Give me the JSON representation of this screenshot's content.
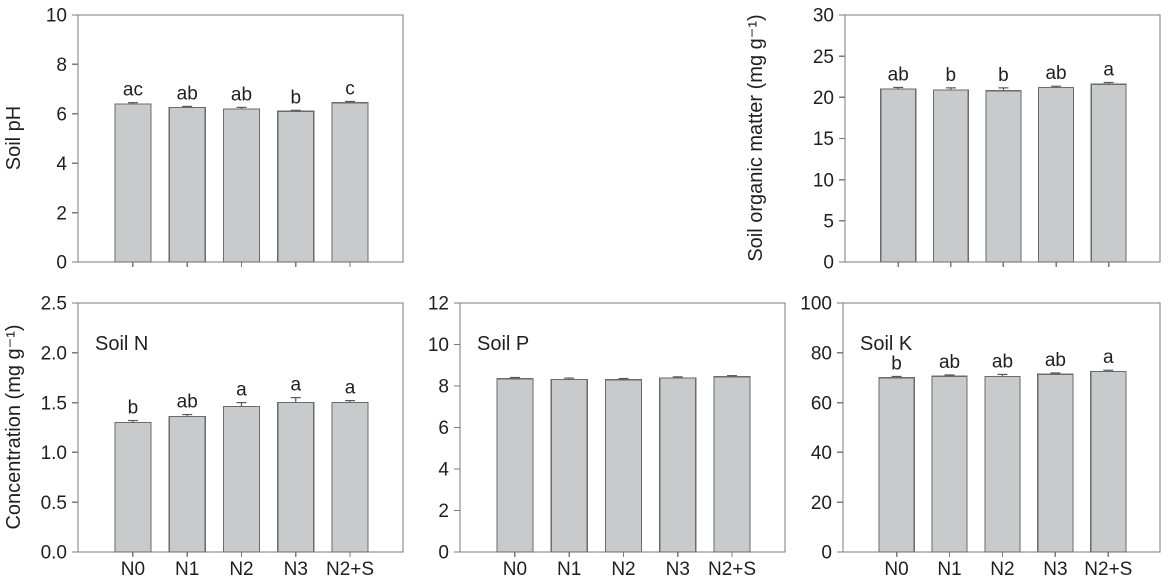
{
  "figure": {
    "title": "Soil properties bar chart panel",
    "background_color": "#ffffff",
    "text_color": "#1f1f1f",
    "categories": [
      "N0",
      "N1",
      "N2",
      "N3",
      "N2+S"
    ]
  },
  "style": {
    "bar_fill": "#c9cacc",
    "bar_stroke": "#6a6b6d",
    "frame_color": "#7a7b7e",
    "error_color": "#58595b",
    "text_color": "#1f1f1f"
  },
  "chart_data": [
    {
      "id": "soil-ph",
      "type": "bar",
      "title": "",
      "annotation": "",
      "xlabel": "",
      "ylabel": "Soil pH",
      "categories": [
        "N0",
        "N1",
        "N2",
        "N3",
        "N2+S"
      ],
      "values": [
        6.4,
        6.25,
        6.2,
        6.1,
        6.45
      ],
      "errors": [
        0.05,
        0.05,
        0.06,
        0.04,
        0.05
      ],
      "sig_letters": [
        "ac",
        "ab",
        "ab",
        "b",
        "c"
      ],
      "ylim": [
        0,
        10
      ],
      "ytick_step": 2,
      "ytick_decimals": 0,
      "show_x_tick_labels": false,
      "grid": false,
      "legend": "none"
    },
    {
      "id": "soil-organic-matter",
      "type": "bar",
      "title": "",
      "annotation": "",
      "xlabel": "",
      "ylabel": "Soil organic matter (mg g⁻¹)",
      "categories": [
        "N0",
        "N1",
        "N2",
        "N3",
        "N2+S"
      ],
      "values": [
        21.0,
        20.9,
        20.8,
        21.2,
        21.6
      ],
      "errors": [
        0.2,
        0.25,
        0.35,
        0.15,
        0.2
      ],
      "sig_letters": [
        "ab",
        "b",
        "b",
        "ab",
        "a"
      ],
      "ylim": [
        0,
        30
      ],
      "ytick_step": 5,
      "ytick_decimals": 0,
      "show_x_tick_labels": false,
      "grid": false,
      "legend": "none"
    },
    {
      "id": "soil-n",
      "type": "bar",
      "title": "",
      "annotation": "Soil N",
      "xlabel": "",
      "ylabel": "Concentration (mg g⁻¹)",
      "categories": [
        "N0",
        "N1",
        "N2",
        "N3",
        "N2+S"
      ],
      "values": [
        1.3,
        1.36,
        1.46,
        1.5,
        1.5
      ],
      "errors": [
        0.02,
        0.02,
        0.04,
        0.05,
        0.02
      ],
      "sig_letters": [
        "b",
        "ab",
        "a",
        "a",
        "a"
      ],
      "ylim": [
        0,
        2.5
      ],
      "ytick_step": 0.5,
      "ytick_decimals": 1,
      "show_x_tick_labels": true,
      "grid": false,
      "legend": "none"
    },
    {
      "id": "soil-p",
      "type": "bar",
      "title": "",
      "annotation": "Soil P",
      "xlabel": "",
      "ylabel": "",
      "categories": [
        "N0",
        "N1",
        "N2",
        "N3",
        "N2+S"
      ],
      "values": [
        8.35,
        8.32,
        8.3,
        8.38,
        8.45
      ],
      "errors": [
        0.06,
        0.06,
        0.06,
        0.06,
        0.05
      ],
      "sig_letters": [],
      "ylim": [
        0,
        12
      ],
      "ytick_step": 2,
      "ytick_decimals": 0,
      "show_x_tick_labels": true,
      "grid": false,
      "legend": "none"
    },
    {
      "id": "soil-k",
      "type": "bar",
      "title": "",
      "annotation": "Soil K",
      "xlabel": "",
      "ylabel": "",
      "categories": [
        "N0",
        "N1",
        "N2",
        "N3",
        "N2+S"
      ],
      "values": [
        70.0,
        70.6,
        70.5,
        71.4,
        72.5
      ],
      "errors": [
        0.5,
        0.5,
        0.8,
        0.5,
        0.5
      ],
      "sig_letters": [
        "b",
        "ab",
        "ab",
        "ab",
        "a"
      ],
      "ylim": [
        0,
        100
      ],
      "ytick_step": 20,
      "ytick_decimals": 0,
      "show_x_tick_labels": true,
      "grid": false,
      "legend": "none"
    }
  ]
}
